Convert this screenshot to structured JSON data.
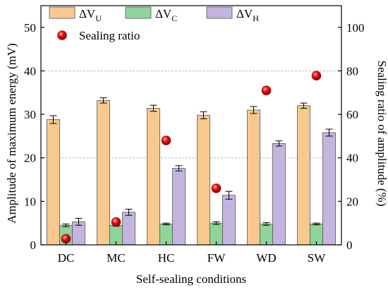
{
  "chart_data": {
    "type": "bar",
    "xlabel": "Self-sealing conditions",
    "ylabel_left": "Amplitude of maximum energy (mV)",
    "ylabel_right": "Sealing ratio of amplitude (%)",
    "categories": [
      "DC",
      "MC",
      "HC",
      "FW",
      "WD",
      "SW"
    ],
    "ylim_left": [
      0,
      55
    ],
    "ylim_right": [
      0,
      110
    ],
    "yticks_left": [
      "0",
      "10",
      "20",
      "30",
      "40",
      "50"
    ],
    "yticks_right": [
      "0",
      "20",
      "40",
      "60",
      "80",
      "100"
    ],
    "grid": "horizontal dashed at 20 and 40",
    "legend_position": "top",
    "series": [
      {
        "name": "ΔV",
        "subscript": "U",
        "color": "#f9c88f",
        "values": [
          28.8,
          33.2,
          31.4,
          29.8,
          31.0,
          32.0
        ],
        "errors": [
          0.9,
          0.6,
          0.7,
          0.8,
          0.8,
          0.6
        ]
      },
      {
        "name": "ΔV",
        "subscript": "C",
        "color": "#90d49a",
        "values": [
          4.5,
          4.5,
          4.8,
          5.0,
          4.8,
          4.8
        ],
        "errors": [
          0.3,
          0.2,
          0.2,
          0.3,
          0.3,
          0.2
        ]
      },
      {
        "name": "ΔV",
        "subscript": "H",
        "color": "#c4b5e0",
        "values": [
          5.3,
          7.5,
          17.6,
          11.4,
          23.3,
          25.8
        ],
        "errors": [
          0.8,
          0.7,
          0.6,
          0.9,
          0.6,
          0.8
        ]
      }
    ],
    "scatter": {
      "name": "Sealing ratio",
      "color": "#e01010",
      "axis": "right",
      "values": [
        2.8,
        10.5,
        48.0,
        26.0,
        71.0,
        77.8
      ]
    }
  }
}
